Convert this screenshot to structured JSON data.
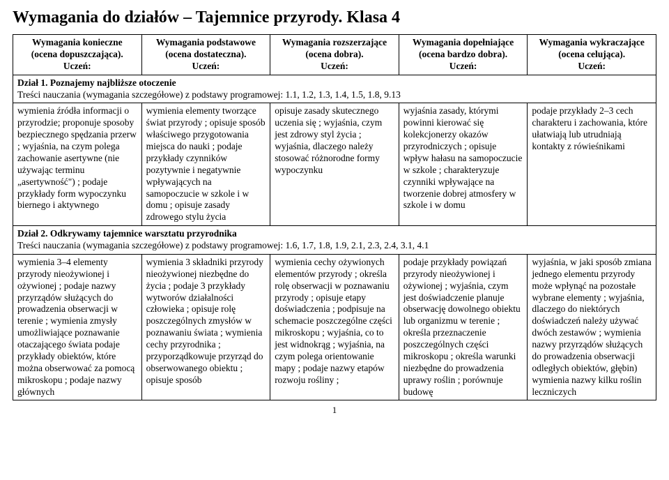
{
  "title": "Wymagania do działów – Tajemnice przyrody. Klasa 4",
  "headers": [
    {
      "l1": "Wymagania konieczne",
      "l2": "(ocena dopuszczająca).",
      "l3": "Uczeń:"
    },
    {
      "l1": "Wymagania podstawowe",
      "l2": "(ocena dostateczna).",
      "l3": "Uczeń:"
    },
    {
      "l1": "Wymagania rozszerzające",
      "l2": "(ocena dobra).",
      "l3": "Uczeń:"
    },
    {
      "l1": "Wymagania dopełniające",
      "l2": "(ocena bardzo dobra).",
      "l3": "Uczeń:"
    },
    {
      "l1": "Wymagania wykraczające",
      "l2": "(ocena celująca).",
      "l3": "Uczeń:"
    }
  ],
  "section1": {
    "heading": "Dział 1. Poznajemy najbliższe otoczenie",
    "sub": "Treści nauczania (wymagania szczegółowe) z podstawy programowej: 1.1, 1.2, 1.3, 1.4, 1.5, 1.8, 9.13",
    "cells": [
      "wymienia źródła informacji o przyrodzie; proponuje sposoby bezpiecznego spędzania przerw ; wyjaśnia, na czym polega zachowanie asertywne (nie używając terminu „asertywność\") ; podaje przykłady form wypoczynku biernego i aktywnego",
      "wymienia elementy tworzące świat przyrody ; opisuje sposób właściwego przygotowania miejsca do nauki ; podaje przykłady czynników pozytywnie i negatywnie wpływających na samopoczucie w szkole i w domu ; opisuje zasady zdrowego stylu życia",
      "opisuje zasady skutecznego uczenia się ; wyjaśnia, czym jest zdrowy styl życia ; wyjaśnia, dlaczego należy stosować różnorodne formy wypoczynku",
      "wyjaśnia zasady, którymi powinni kierować się kolekcjonerzy okazów przyrodniczych ; opisuje wpływ hałasu na samopoczucie w szkole ; charakteryzuje czynniki wpływające na tworzenie dobrej atmosfery w szkole i w domu",
      "podaje przykłady 2–3 cech charakteru i zachowania, które ułatwiają lub utrudniają kontakty z rówieśnikami"
    ]
  },
  "section2": {
    "heading": "Dział 2. Odkrywamy tajemnice warsztatu przyrodnika",
    "sub": "Treści nauczania (wymagania szczegółowe) z podstawy programowej: 1.6, 1.7, 1.8, 1.9, 2.1, 2.3, 2.4, 3.1, 4.1",
    "cells": [
      "wymienia 3–4 elementy przyrody nieożywionej i ożywionej ; podaje nazwy przyrządów służących do prowadzenia obserwacji w terenie ; wymienia zmysły umożliwiające poznawanie otaczającego świata podaje przykłady obiektów, które można obserwować za pomocą mikroskopu ; podaje nazwy głównych",
      "wymienia 3 składniki przyrody nieożywionej niezbędne do życia ; podaje 3 przykłady wytworów działalności człowieka ; opisuje rolę poszczególnych zmysłów w poznawaniu świata ; wymienia cechy przyrodnika ; przyporządkowuje przyrząd do obserwowanego obiektu ; opisuje sposób",
      "wymienia cechy ożywionych elementów przyrody ; określa rolę obserwacji w poznawaniu przyrody ; opisuje etapy doświadczenia ; podpisuje na schemacie poszczególne części mikroskopu ; wyjaśnia, co to jest widnokrąg ; wyjaśnia, na czym polega orientowanie mapy ; podaje nazwy etapów rozwoju rośliny ;",
      "podaje przykłady powiązań przyrody nieożywionej i ożywionej ; wyjaśnia, czym jest doświadczenie planuje obserwację dowolnego obiektu lub organizmu w terenie ; określa przeznaczenie poszczególnych części mikroskopu ; określa warunki niezbędne do prowadzenia uprawy roślin ; porównuje budowę",
      "wyjaśnia, w jaki sposób zmiana jednego elementu przyrody może wpłynąć na pozostałe wybrane elementy ; wyjaśnia, dlaczego do niektórych doświadczeń należy używać dwóch zestawów ; wymienia nazwy przyrządów służących do prowadzenia obserwacji odległych obiektów, głębin) wymienia nazwy kilku roślin leczniczych"
    ]
  },
  "pagenum": "1"
}
